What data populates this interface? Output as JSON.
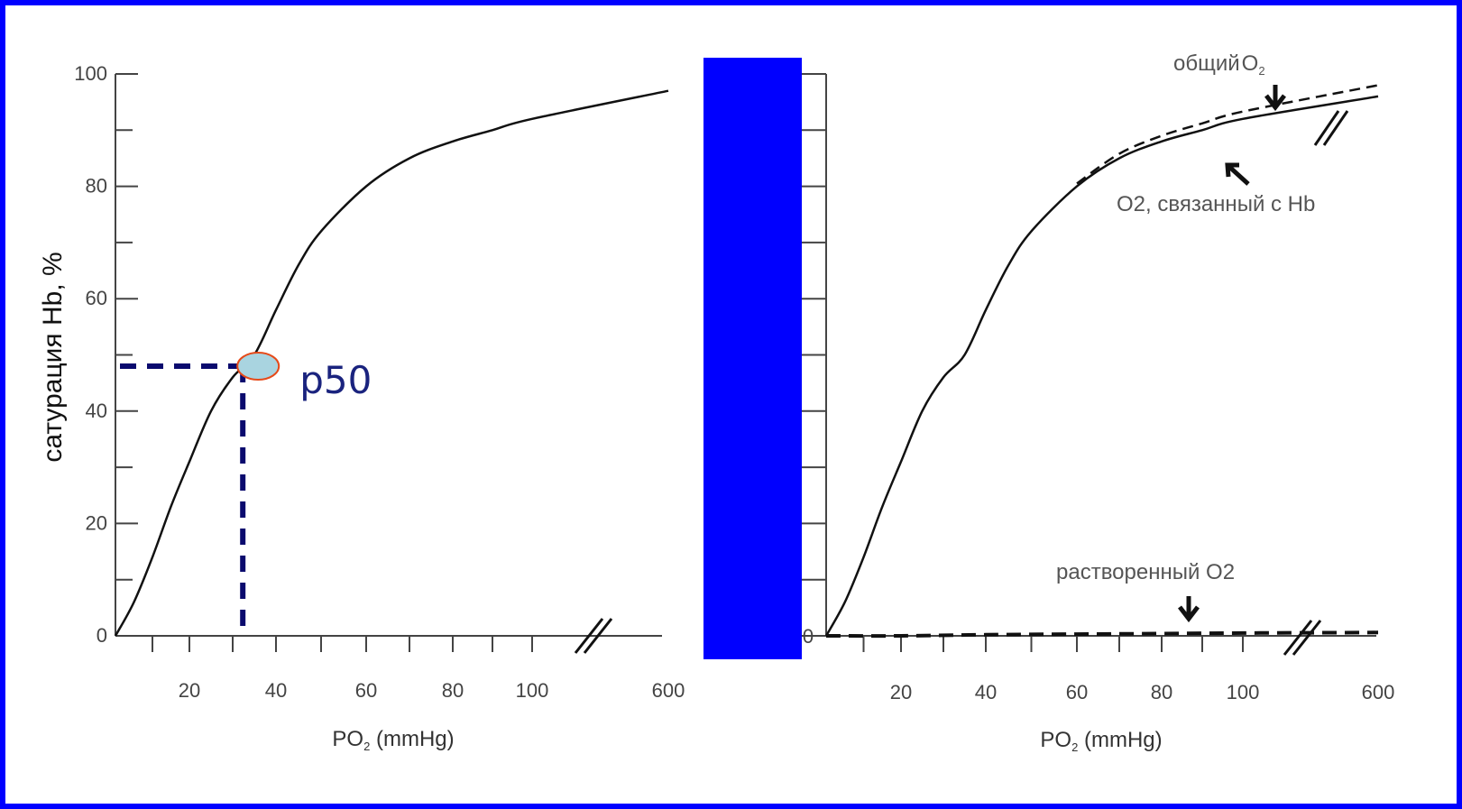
{
  "colors": {
    "frame": "#0000ff",
    "background": "#ffffff",
    "curve": "#111111",
    "p50_dash": "#0a0a6e",
    "p50_marker_fill": "#a9d4e0",
    "p50_marker_stroke": "#e64a19",
    "p50_text": "#1a237e",
    "blue_block": "#0000ff"
  },
  "chart_data": [
    {
      "type": "line",
      "ylabel": "сатурация Hb, %",
      "xlabel_main": "PO",
      "xlabel_sub": "2",
      "xlabel_unit": " (mmHg)",
      "x_axis_break": true,
      "y_ticks": [
        "0",
        "20",
        "40",
        "60",
        "80",
        "100"
      ],
      "x_ticks": [
        "20",
        "40",
        "60",
        "80",
        "100",
        "600"
      ],
      "ylim": [
        0,
        100
      ],
      "series": [
        {
          "style": "solid",
          "x": [
            0,
            5,
            10,
            15,
            20,
            25,
            30,
            35,
            40,
            45,
            50,
            60,
            70,
            80,
            90,
            100,
            600
          ],
          "y": [
            0,
            6,
            14,
            23,
            31,
            40,
            46,
            50,
            58,
            66,
            72,
            80,
            85,
            88,
            90,
            92,
            97
          ]
        }
      ],
      "annotation": {
        "label": "p50",
        "x": 34,
        "y": 48
      }
    },
    {
      "type": "line",
      "xlabel_main": "PO",
      "xlabel_sub": "2",
      "xlabel_unit": " (mmHg)",
      "x_axis_break": true,
      "y_ticks": [
        "0"
      ],
      "x_ticks": [
        "20",
        "40",
        "60",
        "80",
        "100",
        "600"
      ],
      "ylim": [
        0,
        100
      ],
      "series": [
        {
          "style": "solid",
          "x": [
            0,
            5,
            10,
            15,
            20,
            25,
            30,
            35,
            40,
            45,
            50,
            60,
            70,
            80,
            90,
            100,
            600
          ],
          "y": [
            0,
            6,
            14,
            23,
            31,
            40,
            46,
            50,
            58,
            66,
            72,
            80,
            85,
            88,
            90,
            92,
            96
          ]
        },
        {
          "style": "dashed",
          "x": [
            60,
            70,
            80,
            90,
            100,
            600
          ],
          "y": [
            80.5,
            85.8,
            89,
            91.2,
            93.3,
            98
          ]
        },
        {
          "style": "dashed",
          "x": [
            0,
            20,
            40,
            60,
            80,
            100,
            600
          ],
          "y": [
            0,
            0,
            0.2,
            0.3,
            0.4,
            0.5,
            0.6
          ]
        }
      ],
      "annotations": {
        "total_o2_main": "общий",
        "total_o2_o": "O",
        "total_o2_sub": "2",
        "bound_o2": "O2, связанный с Hb",
        "dissolved_o2": "растворенный O2"
      }
    }
  ]
}
